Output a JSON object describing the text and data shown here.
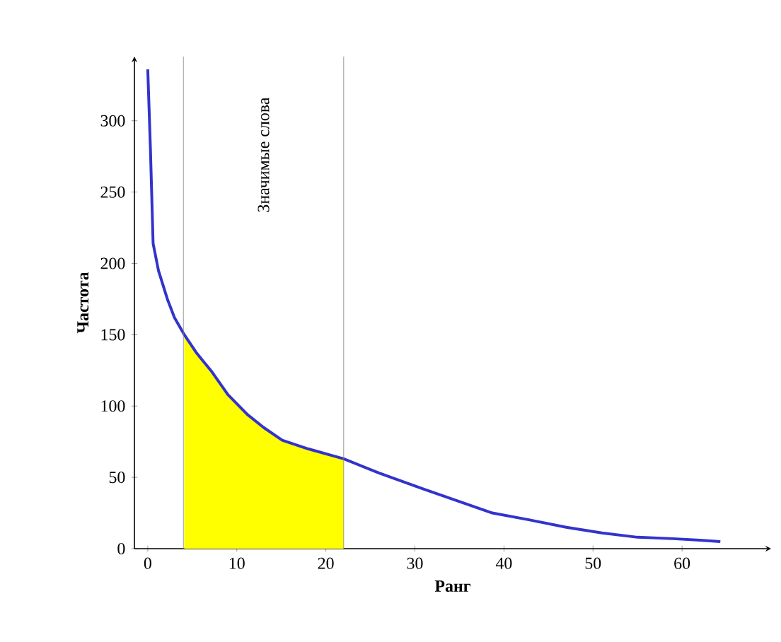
{
  "chart_data": {
    "type": "line",
    "xlabel": "Ранг",
    "ylabel": "Частота",
    "xlim": [
      -1.5,
      70
    ],
    "ylim": [
      0,
      345
    ],
    "xticks": [
      0,
      10,
      20,
      30,
      40,
      50,
      60
    ],
    "yticks": [
      0,
      50,
      100,
      150,
      200,
      250,
      300
    ],
    "series": [
      {
        "type": "area",
        "color": "#ffff00",
        "x": [
          4.1,
          5.5,
          7.2,
          9,
          11.2,
          13,
          15.1,
          18,
          22
        ],
        "values": [
          150,
          137,
          124,
          108,
          94,
          85,
          76,
          70,
          63
        ]
      },
      {
        "color": "#3333cc",
        "x": [
          0,
          0.3,
          0.6,
          1.2,
          2.2,
          3,
          4.1,
          5.5,
          7.2,
          9,
          11.2,
          13,
          15.1,
          18,
          22,
          26,
          30.9,
          35,
          38.7,
          43,
          47,
          51,
          55,
          59,
          62,
          64.3
        ],
        "values": [
          336,
          280,
          214,
          195,
          175,
          162,
          150,
          137,
          124,
          108,
          94,
          85,
          76,
          70,
          63,
          53,
          42,
          33,
          25,
          20,
          15,
          11,
          8,
          7,
          6,
          5
        ]
      }
    ],
    "ref_lines": [
      {
        "axis": "x",
        "value": 4,
        "color": "#808080"
      },
      {
        "axis": "x",
        "value": 22,
        "color": "#808080"
      }
    ],
    "annotations": [
      "Значимые слова"
    ]
  }
}
